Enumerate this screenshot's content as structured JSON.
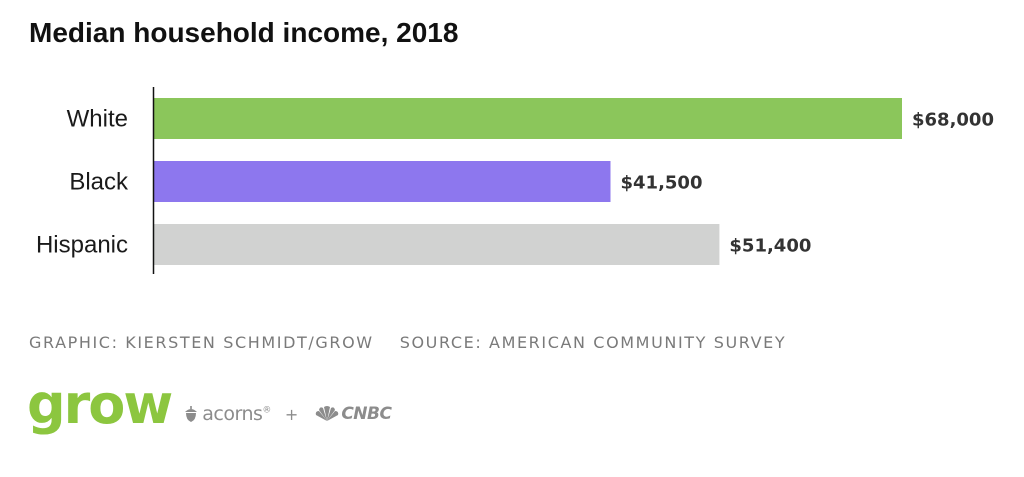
{
  "chart_data": {
    "type": "bar",
    "orientation": "horizontal",
    "title": "Median household income, 2018",
    "categories": [
      "White",
      "Black",
      "Hispanic"
    ],
    "values": [
      68000,
      41500,
      51400
    ],
    "value_labels": [
      "$68,000",
      "$41,500",
      "$51,400"
    ],
    "colors": [
      "#8bc65b",
      "#8d77ee",
      "#d1d2d1"
    ],
    "xlim": [
      0,
      68000
    ],
    "grid": false,
    "legend": "none"
  },
  "credits": {
    "graphic": "GRAPHIC: KIERSTEN SCHMIDT/GROW",
    "source": "SOURCE: AMERICAN COMMUNITY SURVEY"
  },
  "logos": {
    "grow": "grow",
    "acorns": "acorns",
    "acorns_mark": "®",
    "plus": "+",
    "cnbc": "CNBC",
    "grow_color": "#8cc63f",
    "icons": [
      "acorn-icon",
      "nbc-peacock-icon"
    ]
  }
}
